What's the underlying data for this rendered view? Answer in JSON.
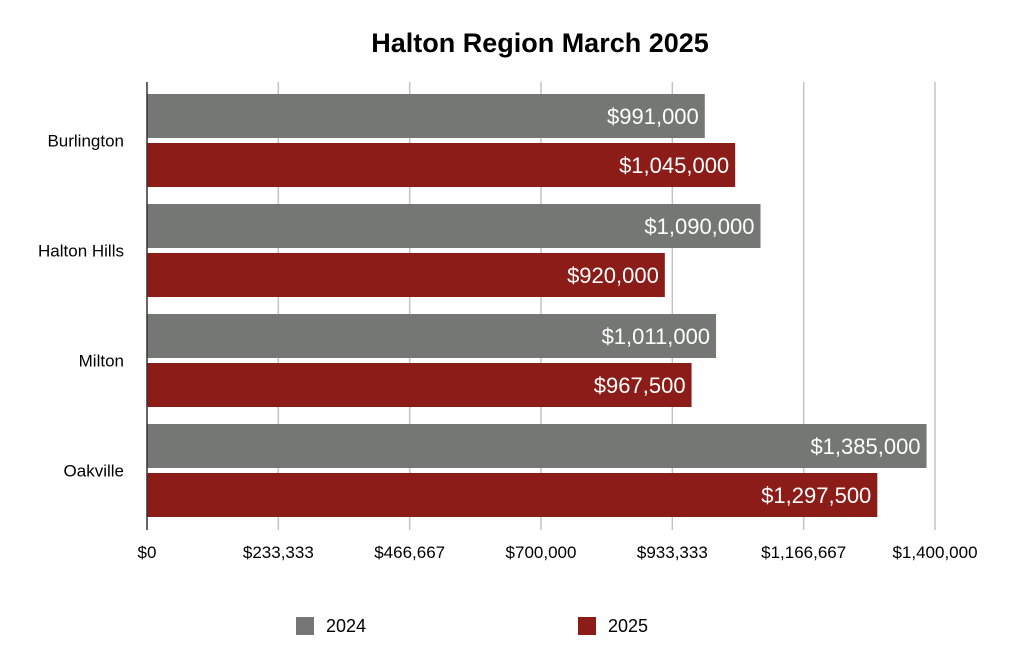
{
  "chart_data": {
    "type": "bar",
    "orientation": "horizontal",
    "title": "Halton Region March 2025",
    "categories": [
      "Burlington",
      "Halton Hills",
      "Milton",
      "Oakville"
    ],
    "series": [
      {
        "name": "2024",
        "color": "#757775",
        "values": [
          991000,
          1090000,
          1011000,
          1385000
        ],
        "labels": [
          "$991,000",
          "$1,090,000",
          "$1,011,000",
          "$1,385,000"
        ]
      },
      {
        "name": "2025",
        "color": "#8b1c17",
        "values": [
          1045000,
          920000,
          967500,
          1297500
        ],
        "labels": [
          "$1,045,000",
          "$920,000",
          "$967,500",
          "$1,297,500"
        ]
      }
    ],
    "xlim": [
      0,
      1400000
    ],
    "xticks": [
      0,
      233333,
      466667,
      700000,
      933333,
      1166667,
      1400000
    ],
    "xtick_labels": [
      "$0",
      "$233,333",
      "$466,667",
      "$700,000",
      "$933,333",
      "$1,166,667",
      "$1,400,000"
    ],
    "grid": true,
    "legend_position": "bottom"
  }
}
